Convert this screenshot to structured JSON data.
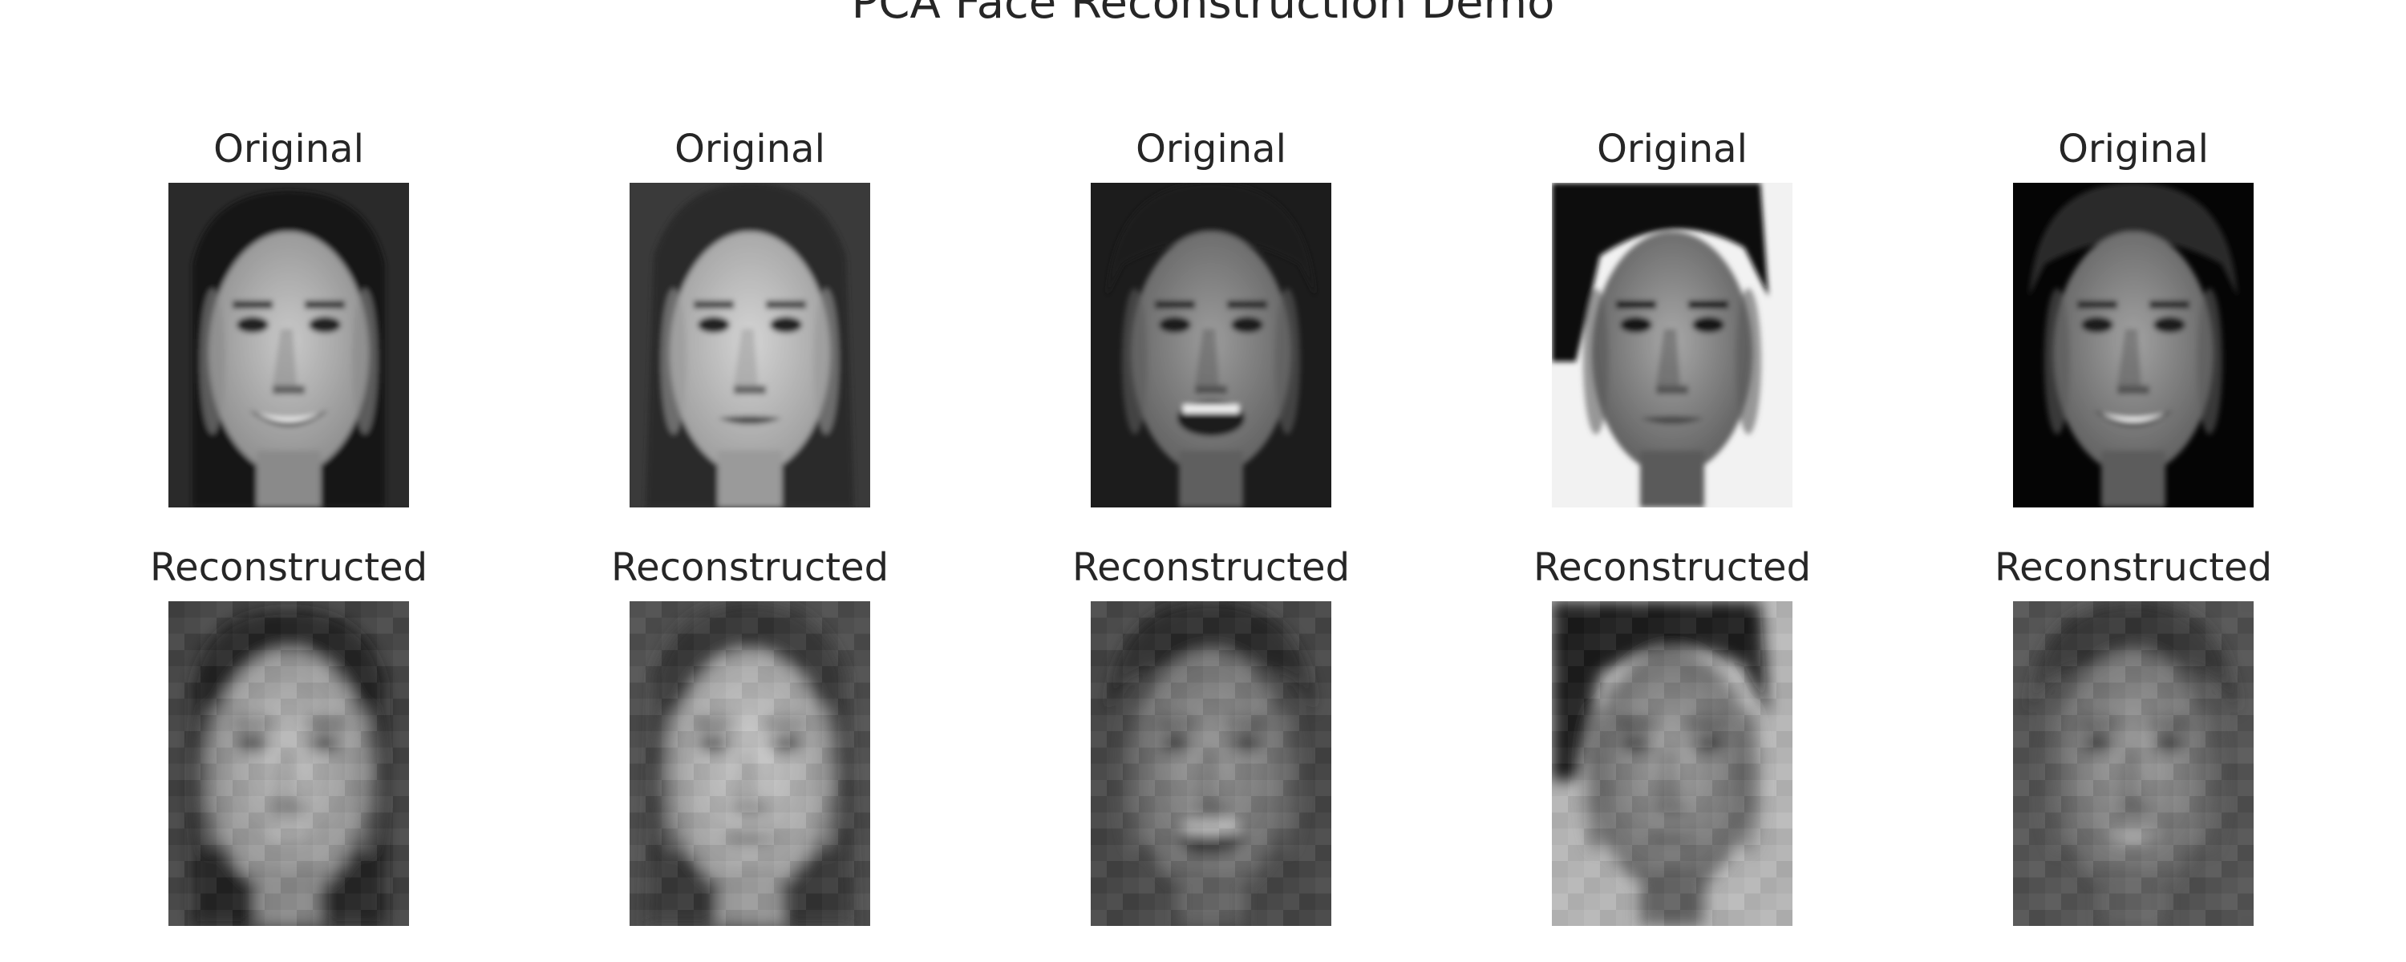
{
  "figure": {
    "title": "PCA Face Reconstruction Demo"
  },
  "panels": [
    {
      "original_title": "Original",
      "reconstructed_title": "Reconstructed",
      "face_icon": "female-face-long-hair-smiling",
      "background_color": "#2a2a2a"
    },
    {
      "original_title": "Original",
      "reconstructed_title": "Reconstructed",
      "face_icon": "female-face-hair-back",
      "background_color": "#3a3a3a"
    },
    {
      "original_title": "Original",
      "reconstructed_title": "Reconstructed",
      "face_icon": "male-face-laughing",
      "background_color": "#1c1c1c"
    },
    {
      "original_title": "Original",
      "reconstructed_title": "Reconstructed",
      "face_icon": "male-face-dark-hair",
      "background_color": "#f2f2f2"
    },
    {
      "original_title": "Original",
      "reconstructed_title": "Reconstructed",
      "face_icon": "male-face-smiling",
      "background_color": "#050505"
    }
  ]
}
